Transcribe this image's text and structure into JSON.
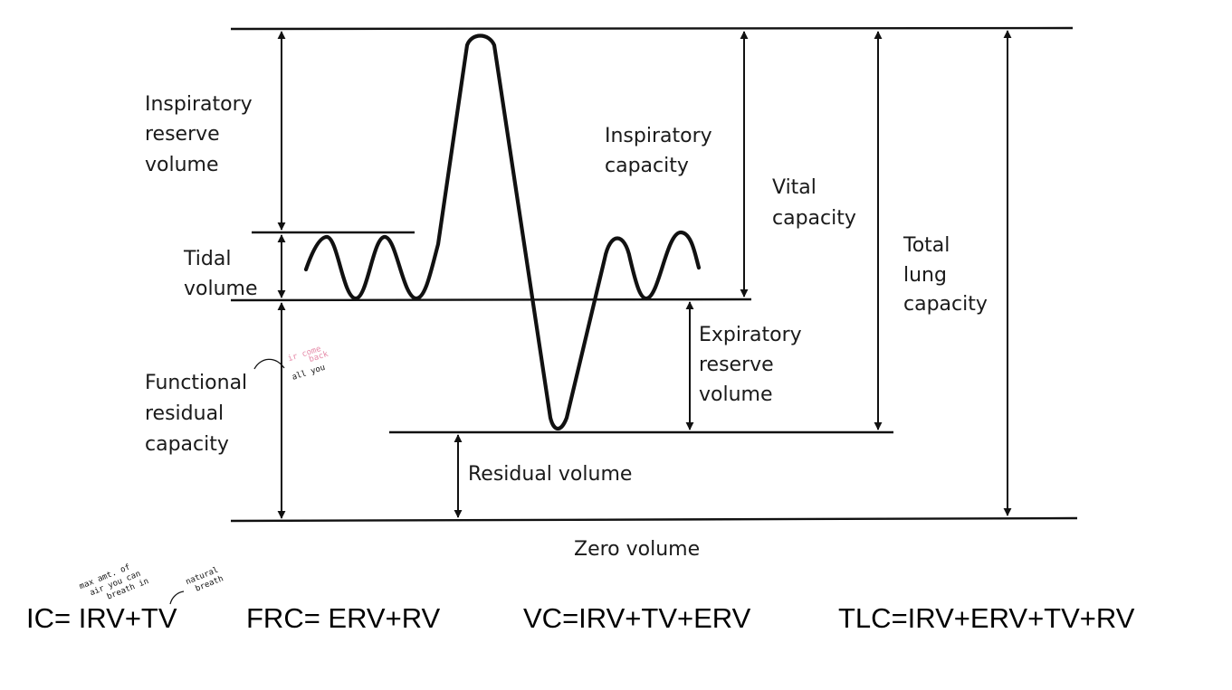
{
  "labels": {
    "irv_1": "Inspiratory",
    "irv_2": "reserve",
    "irv_3": "volume",
    "tv_1": "Tidal",
    "tv_2": "volume",
    "frc_1": "Functional",
    "frc_2": "residual",
    "frc_3": "capacity",
    "ic_1": "Inspiratory",
    "ic_2": "capacity",
    "vc_1": "Vital",
    "vc_2": "capacity",
    "tlc_1": "Total",
    "tlc_2": "lung",
    "tlc_3": "capacity",
    "erv_1": "Expiratory",
    "erv_2": "reserve",
    "erv_3": "volume",
    "rv": "Residual volume",
    "zero": "Zero volume"
  },
  "formulas": {
    "ic": "IC= IRV+TV",
    "frc": "FRC= ERV+RV",
    "vc": "VC=IRV+TV+ERV",
    "tlc": "TLC=IRV+ERV+TV+RV"
  },
  "annotations": {
    "ic_note_1": "max amt. of",
    "ic_note_2": "air you can",
    "ic_note_3": "breath in",
    "tv_note_1": "natural",
    "tv_note_2": "breath",
    "frc_note_pink_1": "ir come",
    "frc_note_pink_2": "back",
    "frc_note_black": "all you"
  },
  "colors": {
    "ink": "#111111",
    "pink_note": "#e58aa8"
  }
}
